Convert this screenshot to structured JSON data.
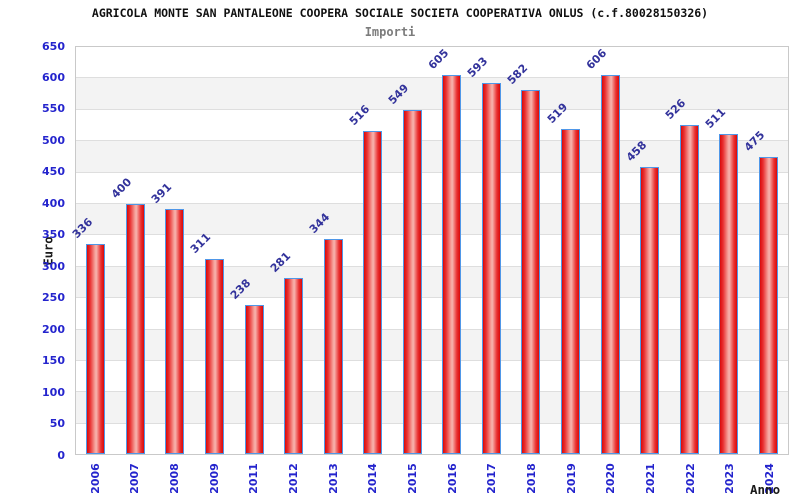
{
  "chart_data": {
    "type": "bar",
    "title": "AGRICOLA MONTE SAN PANTALEONE COOPERA SOCIALE SOCIETA COOPERATIVA ONLUS (c.f.80028150326)",
    "subtitle": "Importi",
    "xlabel": "Anno",
    "ylabel": "Euro",
    "categories": [
      "2006",
      "2007",
      "2008",
      "2009",
      "2011",
      "2012",
      "2013",
      "2014",
      "2015",
      "2016",
      "2017",
      "2018",
      "2019",
      "2020",
      "2021",
      "2022",
      "2023",
      "2024"
    ],
    "values": [
      336,
      400,
      391,
      311,
      238,
      281,
      344,
      516,
      549,
      605,
      593,
      582,
      519,
      606,
      458,
      526,
      511,
      475
    ],
    "ylim": [
      0,
      650
    ],
    "ytick_step": 50,
    "yticks": [
      0,
      50,
      100,
      150,
      200,
      250,
      300,
      350,
      400,
      450,
      500,
      550,
      600,
      650
    ],
    "grid": "horizontal, alternating background bands",
    "legend_position": "none",
    "colors": {
      "bar_fill_edge": "#d90a0a",
      "bar_fill_center": "#f6a59e",
      "bar_border": "#4f97e8",
      "tick_label": "#2424cd",
      "value_label": "#32329b",
      "band_gray": "#f3f3f3",
      "gridline": "#dedede",
      "title_text": "#101010",
      "subtitle_text": "#7c7c7c"
    }
  }
}
